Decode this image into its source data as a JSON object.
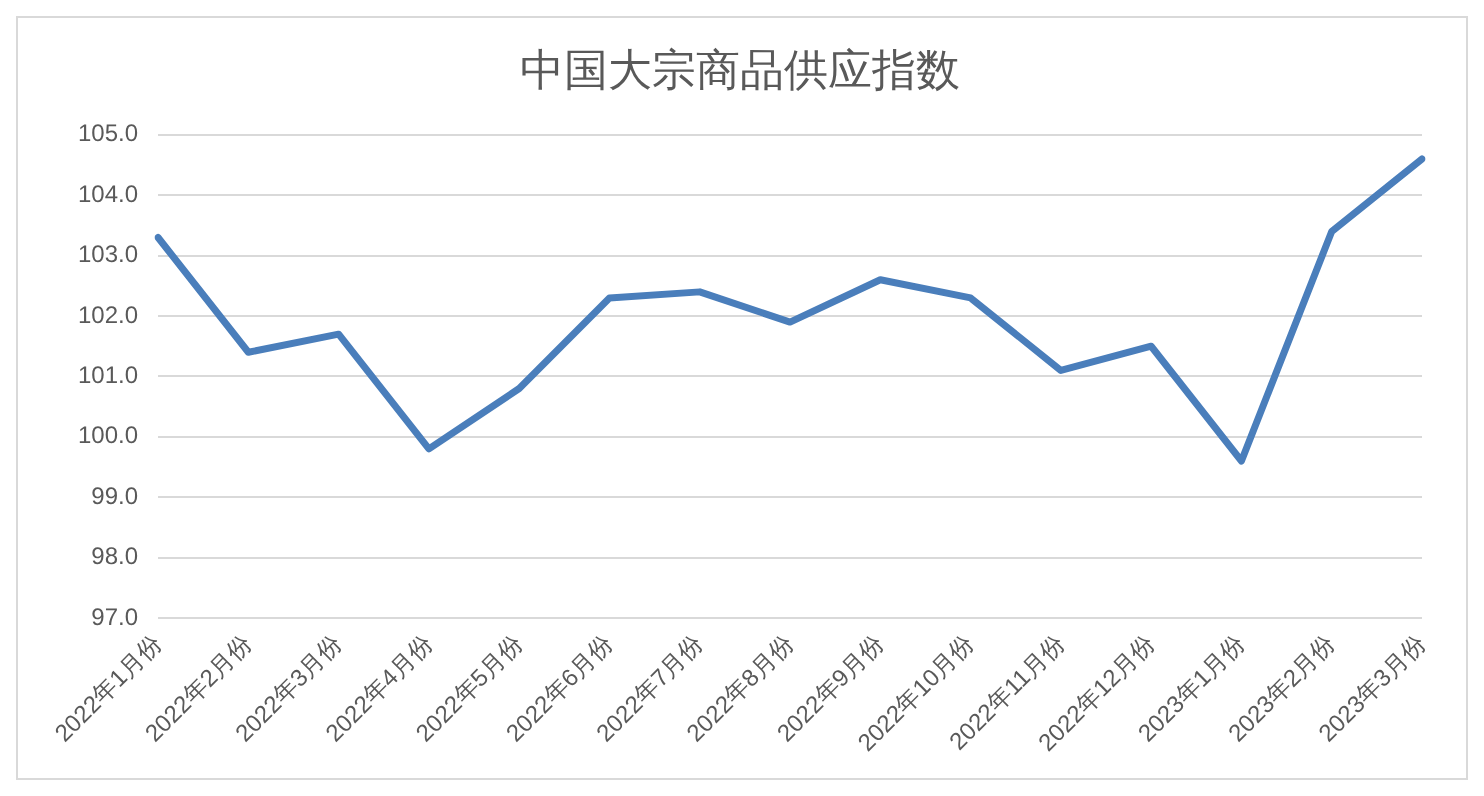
{
  "chart_data": {
    "type": "line",
    "title": "中国大宗商品供应指数",
    "categories": [
      "2022年1月份",
      "2022年2月份",
      "2022年3月份",
      "2022年4月份",
      "2022年5月份",
      "2022年6月份",
      "2022年7月份",
      "2022年8月份",
      "2022年9月份",
      "2022年10月份",
      "2022年11月份",
      "2022年12月份",
      "2023年1月份",
      "2023年2月份",
      "2023年3月份"
    ],
    "series": [
      {
        "color": "#4a7ebb",
        "values": [
          103.3,
          101.4,
          101.7,
          99.8,
          100.8,
          102.3,
          102.4,
          101.9,
          102.6,
          102.3,
          101.1,
          101.5,
          99.6,
          103.4,
          104.6
        ]
      }
    ],
    "ylim": [
      97,
      105
    ],
    "yticks": [
      {
        "value": 97,
        "label": "97.0"
      },
      {
        "value": 98,
        "label": "98.0"
      },
      {
        "value": 99,
        "label": "99.0"
      },
      {
        "value": 100,
        "label": "100.0"
      },
      {
        "value": 101,
        "label": "101.0"
      },
      {
        "value": 102,
        "label": "102.0"
      },
      {
        "value": 103,
        "label": "103.0"
      },
      {
        "value": 104,
        "label": "104.0"
      },
      {
        "value": 105,
        "label": "105.0"
      }
    ],
    "grid": "y",
    "legend": false,
    "marker": "none",
    "line_style": "solid"
  }
}
